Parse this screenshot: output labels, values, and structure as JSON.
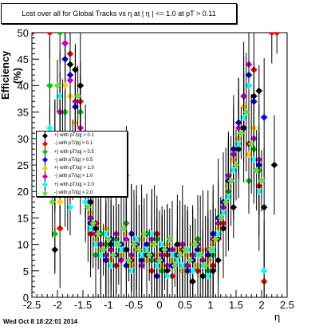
{
  "header": {
    "title": "Lost over all for Global Tracks vs   η at |  η | <= 1.0 at pT > 0.11"
  },
  "footer": {
    "timestamp": "Wed Oct  8 18:22:01 2014"
  },
  "chart_data": {
    "type": "scatter",
    "title": "Lost over all for Global Tracks vs   η at |  η | <= 1.0 at pT > 0.11",
    "xlabel": "η",
    "ylabel": "Efficiency (%)",
    "xlim": [
      -2.5,
      2.5
    ],
    "ylim": [
      0,
      50
    ],
    "xticks": [
      "-2.5",
      "-2",
      "-1.5",
      "-1",
      "-0.5",
      "0",
      "0.5",
      "1",
      "1.5",
      "2",
      "2.5"
    ],
    "yticks": [
      "0",
      "5",
      "10",
      "15",
      "20",
      "25",
      "30",
      "35",
      "40",
      "45",
      "50"
    ],
    "grid": false,
    "legend_position": "middle-left",
    "series": [
      {
        "name": "+) with pT/|q| > 0.1",
        "color": "#000000",
        "x": [
          -2.05,
          -1.95,
          -1.85,
          -1.75,
          -1.65,
          -1.55,
          -1.45,
          -1.35,
          -1.25,
          -1.15,
          -1.05,
          -0.95,
          -0.85,
          -0.75,
          -0.65,
          -0.55,
          -0.45,
          -0.35,
          -0.25,
          -0.15,
          -0.05,
          0.05,
          0.15,
          0.25,
          0.35,
          0.45,
          0.55,
          0.65,
          0.75,
          0.85,
          0.95,
          1.05,
          1.15,
          1.25,
          1.35,
          1.45,
          1.55,
          1.65,
          1.75,
          1.85,
          1.95,
          2.05,
          2.25
        ],
        "y": [
          9,
          24,
          48,
          44,
          43,
          40,
          27,
          18,
          13,
          9,
          8,
          10,
          11,
          7,
          9,
          12,
          9,
          6,
          8,
          10,
          6,
          9,
          5,
          7,
          10,
          5,
          6,
          3,
          5,
          4,
          8,
          5,
          7,
          13,
          22,
          17,
          28,
          32,
          40,
          38,
          39,
          17,
          25
        ]
      },
      {
        "name": "-) with pT/|q| > 0.1",
        "color": "#ff0000",
        "x": [
          -2.5,
          -2.15,
          -1.95,
          -1.75,
          -1.55,
          -1.45,
          -1.35,
          -1.25,
          -1.15,
          -1.05,
          -0.95,
          -0.85,
          -0.75,
          -0.65,
          -0.55,
          -0.45,
          -0.35,
          -0.25,
          -0.15,
          -0.05,
          0.05,
          0.15,
          0.25,
          0.35,
          0.45,
          0.55,
          0.65,
          0.75,
          0.85,
          0.95,
          1.05,
          1.15,
          1.25,
          1.35,
          1.45,
          1.55,
          1.65,
          1.75,
          1.85,
          1.95,
          2.05,
          2.2,
          2.3
        ],
        "y": [
          50,
          50,
          13,
          46,
          37,
          26,
          12,
          14,
          10,
          8,
          11,
          6,
          9,
          12,
          7,
          9,
          11,
          7,
          5,
          12,
          6,
          8,
          4,
          7,
          9,
          6,
          8,
          5,
          7,
          9,
          6,
          11,
          14,
          19,
          26,
          33,
          36,
          29,
          43,
          21,
          3,
          50,
          50
        ]
      },
      {
        "name": "+) with pT/|q| > 0.5",
        "color": "#00cc00",
        "x": [
          -2.15,
          -2.05,
          -1.95,
          -1.85,
          -1.75,
          -1.65,
          -1.55,
          -1.45,
          -1.35,
          -1.25,
          -1.15,
          -1.05,
          -0.95,
          -0.85,
          -0.75,
          -0.65,
          -0.55,
          -0.45,
          -0.35,
          -0.25,
          -0.15,
          -0.05,
          0.05,
          0.15,
          0.25,
          0.35,
          0.45,
          0.55,
          0.65,
          0.75,
          0.85,
          0.95,
          1.05,
          1.15,
          1.25,
          1.35,
          1.45,
          1.55,
          1.65,
          1.75,
          1.85,
          1.95
        ],
        "y": [
          40,
          12,
          50,
          35,
          22,
          28,
          35,
          20,
          15,
          8,
          12,
          10,
          7,
          11,
          9,
          14,
          6,
          10,
          8,
          12,
          7,
          11,
          5,
          9,
          6,
          8,
          10,
          6,
          7,
          11,
          9,
          5,
          8,
          12,
          16,
          20,
          24,
          30,
          34,
          22,
          28,
          24
        ]
      },
      {
        "name": "-) with pT/|q| > 0.5",
        "color": "#0000ff",
        "x": [
          -2.05,
          -1.95,
          -1.85,
          -1.75,
          -1.65,
          -1.55,
          -1.45,
          -1.35,
          -1.25,
          -1.15,
          -1.05,
          -0.95,
          -0.85,
          -0.75,
          -0.65,
          -0.55,
          -0.45,
          -0.35,
          -0.25,
          -0.15,
          -0.05,
          0.05,
          0.15,
          0.25,
          0.35,
          0.45,
          0.55,
          0.65,
          0.75,
          0.85,
          0.95,
          1.05,
          1.15,
          1.25,
          1.35,
          1.45,
          1.55,
          1.65,
          1.75,
          1.85,
          1.95,
          2.05
        ],
        "y": [
          20,
          30,
          45,
          42,
          36,
          30,
          22,
          14,
          10,
          9,
          7,
          11,
          8,
          10,
          6,
          12,
          9,
          7,
          10,
          8,
          4,
          7,
          9,
          6,
          8,
          10,
          5,
          7,
          9,
          6,
          8,
          12,
          15,
          18,
          22,
          28,
          33,
          38,
          42,
          37,
          25,
          34
        ]
      },
      {
        "name": "+) with pT/|q| > 1.0",
        "color": "#ffcc00",
        "x": [
          -2.05,
          -1.95,
          -1.85,
          -1.75,
          -1.65,
          -1.55,
          -1.45,
          -1.35,
          -1.25,
          -1.15,
          -1.05,
          -0.95,
          -0.85,
          -0.75,
          -0.65,
          -0.55,
          -0.45,
          -0.35,
          -0.25,
          -0.15,
          -0.05,
          0.05,
          0.15,
          0.25,
          0.35,
          0.45,
          0.55,
          0.65,
          0.75,
          0.85,
          0.95,
          1.05,
          1.15,
          1.25,
          1.35,
          1.45,
          1.55,
          1.65,
          1.75,
          1.85
        ],
        "y": [
          25,
          18,
          40,
          38,
          33,
          28,
          20,
          16,
          11,
          9,
          13,
          7,
          10,
          8,
          12,
          6,
          9,
          11,
          7,
          10,
          8,
          6,
          10,
          7,
          9,
          5,
          8,
          10,
          6,
          9,
          7,
          10,
          13,
          17,
          21,
          26,
          30,
          36,
          27,
          32
        ]
      },
      {
        "name": "-) with pT/|q| > 1.0",
        "color": "#cc00cc",
        "x": [
          -2.05,
          -1.95,
          -1.85,
          -1.75,
          -1.65,
          -1.55,
          -1.45,
          -1.35,
          -1.25,
          -1.15,
          -1.05,
          -0.95,
          -0.85,
          -0.75,
          -0.65,
          -0.55,
          -0.45,
          -0.35,
          -0.25,
          -0.15,
          -0.05,
          0.05,
          0.15,
          0.25,
          0.35,
          0.45,
          0.55,
          0.65,
          0.75,
          0.85,
          0.95,
          1.05,
          1.15,
          1.25,
          1.35,
          1.45,
          1.55,
          1.65,
          1.75,
          1.85,
          1.95
        ],
        "y": [
          28,
          35,
          48,
          41,
          37,
          32,
          24,
          15,
          12,
          10,
          8,
          9,
          12,
          7,
          11,
          8,
          10,
          6,
          9,
          11,
          7,
          8,
          6,
          9,
          7,
          10,
          6,
          8,
          10,
          7,
          9,
          11,
          14,
          17,
          23,
          27,
          32,
          38,
          44,
          30,
          26
        ]
      },
      {
        "name": "+) with pT/|q| > 2.0",
        "color": "#00ffff",
        "x": [
          -2.15,
          -2.05,
          -1.95,
          -1.85,
          -1.75,
          -1.65,
          -1.55,
          -1.45,
          -1.35,
          -1.25,
          -1.15,
          -1.05,
          -0.95,
          -0.85,
          -0.75,
          -0.65,
          -0.55,
          -0.45,
          -0.35,
          -0.25,
          -0.15,
          -0.05,
          0.05,
          0.15,
          0.25,
          0.35,
          0.45,
          0.55,
          0.65,
          0.75,
          0.85,
          0.95,
          1.05,
          1.15,
          1.25,
          1.35,
          1.45,
          1.55,
          1.65,
          1.75,
          1.85,
          1.95,
          2.05
        ],
        "y": [
          32,
          27,
          38,
          20,
          17,
          30,
          25,
          18,
          13,
          10,
          8,
          12,
          6,
          10,
          9,
          23,
          5,
          11,
          8,
          9,
          12,
          6,
          10,
          4,
          8,
          7,
          6,
          9,
          5,
          8,
          6,
          4,
          9,
          12,
          16,
          19,
          24,
          29,
          34,
          40,
          26,
          20,
          5
        ]
      },
      {
        "name": "-) with pT/|q| > 2.0",
        "color": "#66dd44",
        "x": [
          -2.1,
          -2.0,
          -1.9,
          -1.8,
          -1.7,
          -1.6,
          -1.5,
          -1.4,
          -1.3,
          -1.2,
          -1.1,
          -1.0,
          -0.9,
          -0.8,
          -0.7,
          -0.6,
          -0.5,
          -0.4,
          -0.3,
          -0.2,
          -0.1,
          0.0,
          0.1,
          0.2,
          0.3,
          0.4,
          0.5,
          0.6,
          0.7,
          0.8,
          0.9,
          1.0,
          1.1,
          1.2,
          1.3,
          1.4,
          1.5,
          1.6,
          1.7,
          1.8,
          1.9,
          2.0
        ],
        "y": [
          18,
          40,
          30,
          22,
          26,
          38,
          24,
          17,
          14,
          12,
          9,
          11,
          8,
          10,
          13,
          7,
          10,
          9,
          12,
          8,
          10,
          7,
          9,
          11,
          6,
          8,
          9,
          7,
          10,
          8,
          6,
          9,
          11,
          15,
          18,
          22,
          25,
          31,
          35,
          29,
          24,
          22
        ]
      }
    ]
  }
}
